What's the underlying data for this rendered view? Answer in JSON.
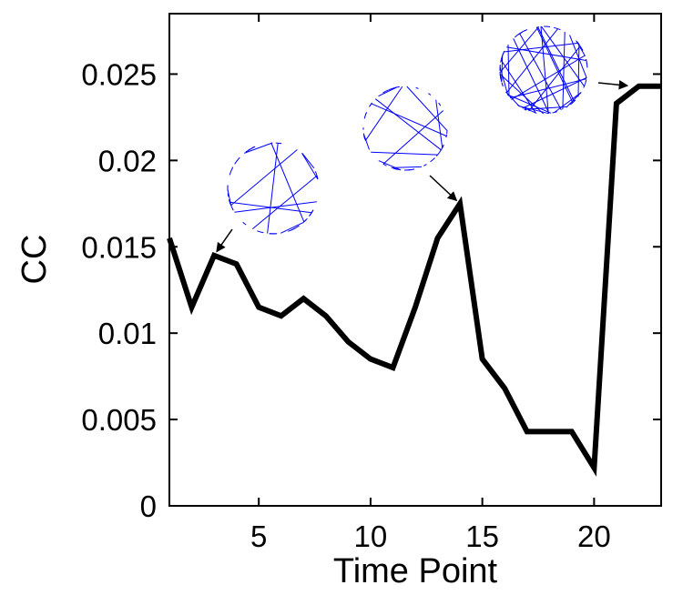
{
  "chart_data": {
    "type": "line",
    "xlabel": "Time Point",
    "ylabel": "CC",
    "xlim": [
      1,
      23
    ],
    "ylim": [
      0,
      0.0285
    ],
    "x_ticks": [
      5,
      10,
      15,
      20
    ],
    "x_tick_labels": [
      "5",
      "10",
      "15",
      "20"
    ],
    "y_ticks": [
      0,
      0.005,
      0.01,
      0.015,
      0.02,
      0.025
    ],
    "y_tick_labels": [
      "0",
      "0.005",
      "0.01",
      "0.015",
      "0.02",
      "0.025"
    ],
    "grid": false,
    "legend": "none",
    "series": [
      {
        "color": "#000000",
        "x": [
          1,
          2,
          3,
          4,
          5,
          6,
          7,
          8,
          9,
          10,
          11,
          12,
          13,
          14,
          15,
          16,
          17,
          18,
          19,
          20,
          21,
          22,
          23
        ],
        "values": [
          0.0155,
          0.0115,
          0.0145,
          0.014,
          0.0115,
          0.011,
          0.012,
          0.011,
          0.0095,
          0.0085,
          0.008,
          0.0115,
          0.0155,
          0.0175,
          0.0085,
          0.0068,
          0.0043,
          0.0043,
          0.0043,
          0.0022,
          0.0233,
          0.0243,
          0.0243
        ]
      }
    ],
    "annotations": [
      {
        "kind": "network-inset",
        "color": "#0000ff",
        "points_to": {
          "x": 3,
          "y": 0.0145
        }
      },
      {
        "kind": "network-inset",
        "color": "#0000ff",
        "points_to": {
          "x": 14,
          "y": 0.0175
        }
      },
      {
        "kind": "network-inset",
        "color": "#0000ff",
        "points_to": {
          "x": 21.7,
          "y": 0.0243
        }
      }
    ]
  }
}
